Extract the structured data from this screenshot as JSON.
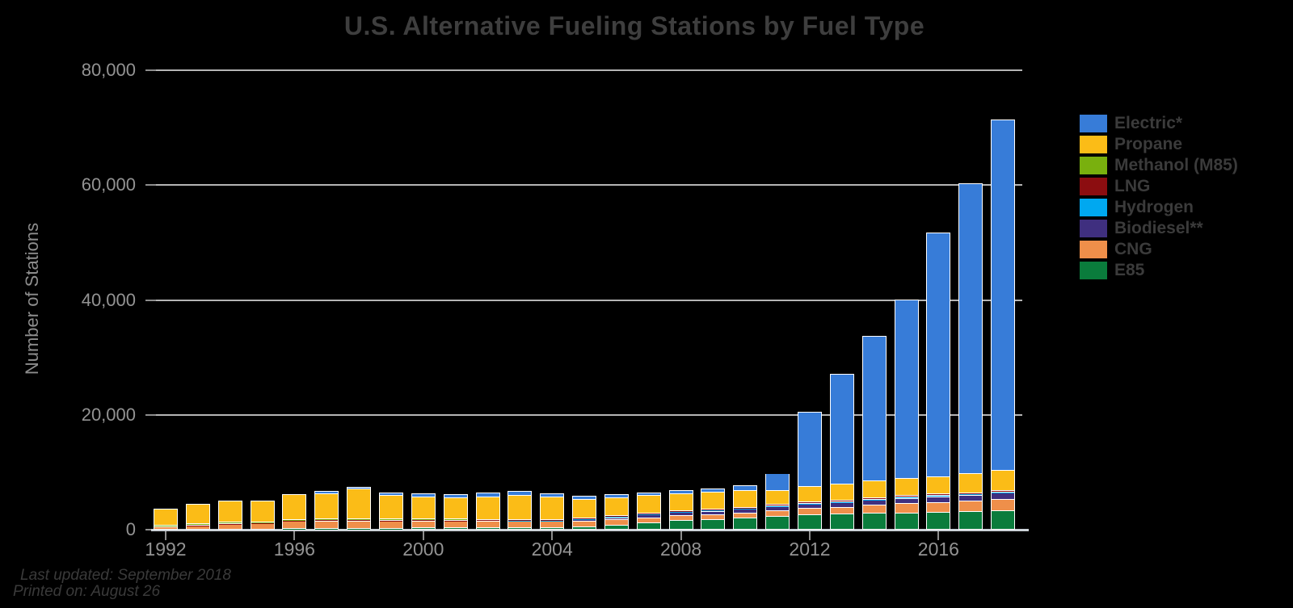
{
  "chart_data": {
    "type": "bar",
    "stacked": true,
    "title": "U.S. Alternative Fueling Stations by Fuel Type",
    "ylabel": "Number of Stations",
    "ylim": [
      0,
      80000
    ],
    "grid": true,
    "legend_position": "right",
    "yticks": [
      {
        "value": 0,
        "label": "0"
      },
      {
        "value": 20000,
        "label": "20,000"
      },
      {
        "value": 40000,
        "label": "40,000"
      },
      {
        "value": 60000,
        "label": "60,000"
      },
      {
        "value": 80000,
        "label": "80,000"
      }
    ],
    "x_years": [
      1992,
      1993,
      1994,
      1995,
      1996,
      1997,
      1998,
      1999,
      2000,
      2001,
      2002,
      2003,
      2004,
      2005,
      2006,
      2007,
      2008,
      2009,
      2010,
      2011,
      2012,
      2013,
      2014,
      2015,
      2016,
      2017,
      2018
    ],
    "x_labeled_ticks": [
      1992,
      1996,
      2000,
      2004,
      2008,
      2012,
      2016
    ],
    "stack_order_bottom_to_top": [
      "E85",
      "CNG",
      "Biodiesel**",
      "Hydrogen",
      "LNG",
      "Methanol (M85)",
      "Propane",
      "Electric*"
    ],
    "series": [
      {
        "name": "Electric*",
        "color": "#377CD8",
        "values": [
          0,
          0,
          0,
          0,
          0,
          200,
          200,
          300,
          400,
          500,
          550,
          550,
          500,
          450,
          420,
          430,
          450,
          500,
          800,
          3100,
          13500,
          19800,
          25900,
          31900,
          43200,
          51300,
          61900
        ]
      },
      {
        "name": "Propane",
        "color": "#FBBC17",
        "values": [
          3300,
          3900,
          4100,
          4000,
          4800,
          5000,
          5700,
          4700,
          4400,
          4300,
          4500,
          4800,
          4400,
          3900,
          3700,
          3500,
          3400,
          3300,
          3300,
          2600,
          2700,
          2800,
          2900,
          2900,
          3000,
          3200,
          3400
        ]
      },
      {
        "name": "Methanol (M85)",
        "color": "#79B00E",
        "values": [
          60,
          70,
          80,
          90,
          100,
          100,
          100,
          80,
          40,
          20,
          0,
          0,
          0,
          0,
          0,
          0,
          0,
          0,
          0,
          0,
          0,
          0,
          0,
          0,
          0,
          0,
          0
        ]
      },
      {
        "name": "LNG",
        "color": "#8C0D10",
        "values": [
          10,
          20,
          30,
          40,
          60,
          60,
          70,
          60,
          60,
          60,
          60,
          60,
          60,
          60,
          60,
          60,
          50,
          50,
          50,
          60,
          70,
          80,
          100,
          120,
          140,
          140,
          140
        ]
      },
      {
        "name": "Hydrogen",
        "color": "#00A8F0",
        "values": [
          0,
          0,
          0,
          0,
          0,
          0,
          0,
          0,
          0,
          0,
          10,
          20,
          30,
          30,
          30,
          40,
          40,
          50,
          50,
          60,
          60,
          60,
          60,
          60,
          60,
          60,
          70
        ]
      },
      {
        "name": "Biodiesel**",
        "color": "#3F2F7F",
        "values": [
          0,
          0,
          0,
          0,
          0,
          0,
          0,
          0,
          0,
          0,
          0,
          0,
          0,
          80,
          300,
          400,
          450,
          500,
          550,
          600,
          650,
          700,
          750,
          800,
          850,
          900,
          950
        ]
      },
      {
        "name": "CNG",
        "color": "#EF8F4A",
        "values": [
          300,
          500,
          800,
          900,
          1200,
          1300,
          1300,
          1250,
          1250,
          1200,
          1150,
          1100,
          1050,
          1000,
          950,
          900,
          850,
          850,
          900,
          950,
          1000,
          1100,
          1300,
          1500,
          1600,
          1700,
          1800
        ]
      },
      {
        "name": "E85",
        "color": "#0A7C3C",
        "values": [
          0,
          0,
          0,
          0,
          20,
          40,
          60,
          80,
          120,
          150,
          170,
          190,
          230,
          400,
          700,
          1200,
          1650,
          1900,
          2100,
          2400,
          2500,
          2600,
          2700,
          2800,
          2900,
          3000,
          3200
        ]
      }
    ],
    "notes": {
      "last_updated": "Last updated: September 2018",
      "printed_on": "Printed on: August 26"
    }
  },
  "styling": {
    "background": "#000000",
    "title_color": "#3E3E3E",
    "axis_label_color": "#939393",
    "legend_text_color": "#3B3B3B",
    "gridline_color": "#B5B5B5",
    "axis_line_color": "#CCD2D8",
    "note_color": "#3A3A3A",
    "bar_border_color": "#FFFFFF"
  }
}
